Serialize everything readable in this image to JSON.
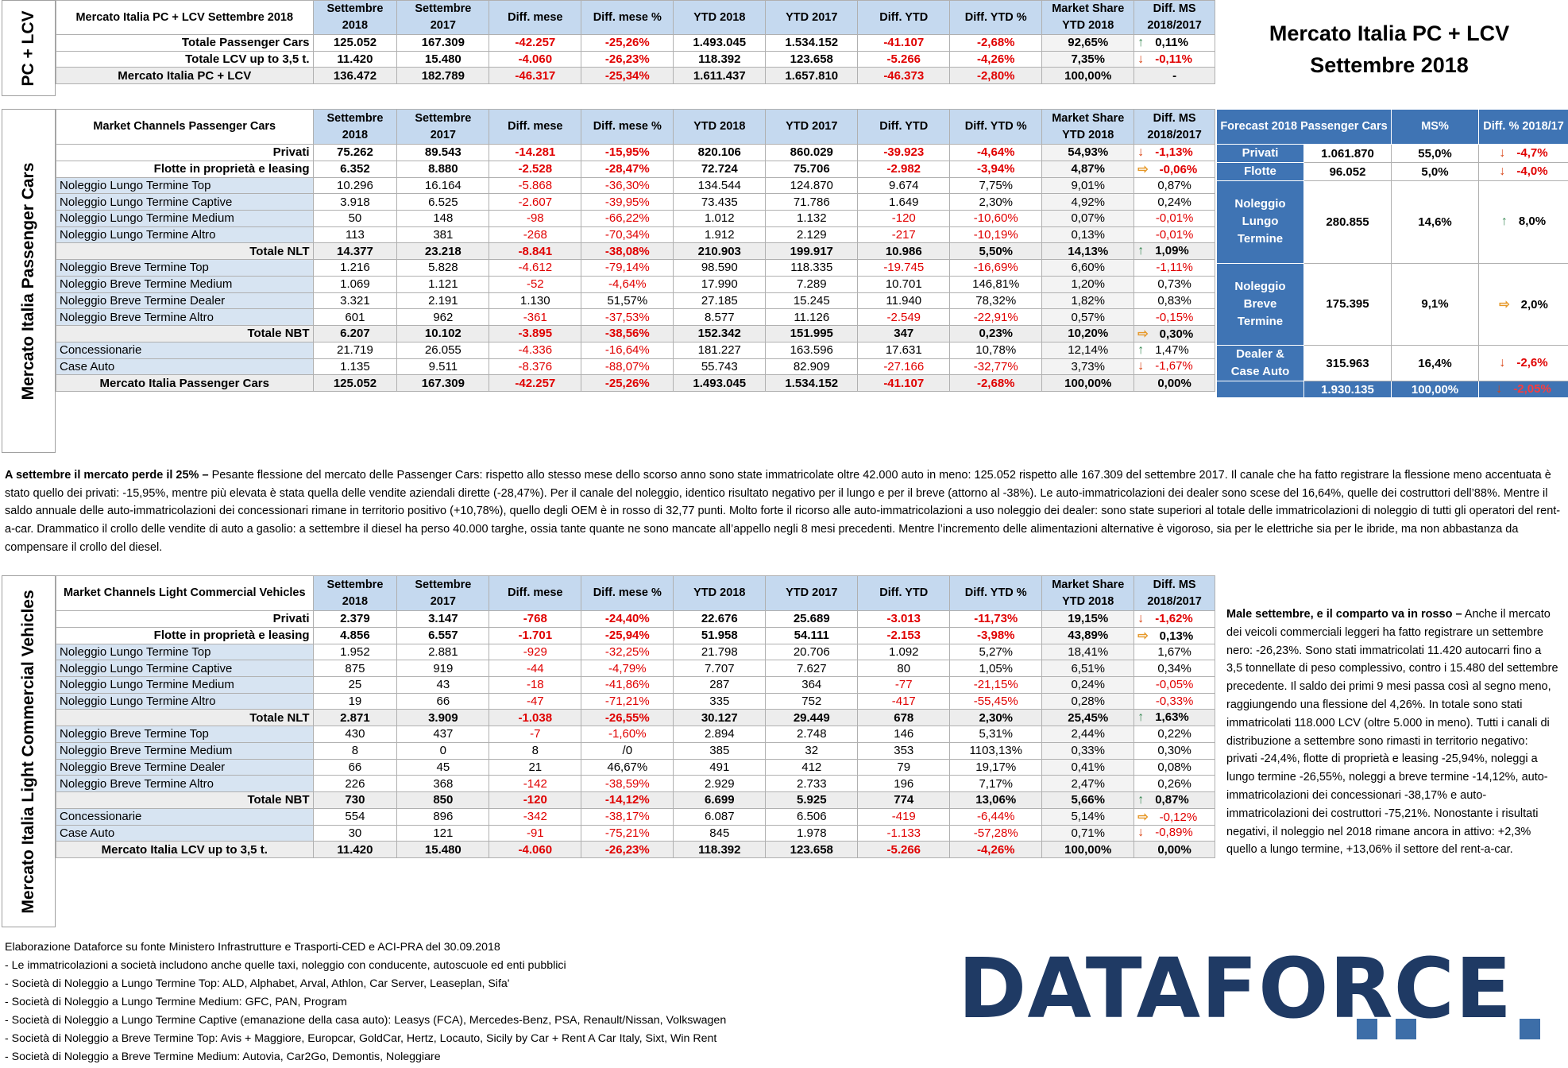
{
  "title": {
    "line1": "Mercato Italia PC + LCV",
    "line2": "Settembre 2018"
  },
  "columns": [
    "Settembre 2018",
    "Settembre 2017",
    "Diff. mese",
    "Diff. mese %",
    "YTD 2018",
    "YTD 2017",
    "Diff. YTD",
    "Diff. YTD %",
    "Market Share YTD 2018",
    "Diff. MS 2018/2017"
  ],
  "summary": {
    "side_label": "PC + LCV",
    "header_label": "Mercato Italia PC + LCV Settembre 2018",
    "rows": [
      {
        "label": "Totale Passenger Cars",
        "cells": [
          "125.052",
          "167.309",
          "-42.257",
          "-25,26%",
          "1.493.045",
          "1.534.152",
          "-41.107",
          "-2,68%",
          "92,65%"
        ],
        "arrow": "up",
        "diff": "0,11%"
      },
      {
        "label": "Totale LCV up to 3,5 t.",
        "cells": [
          "11.420",
          "15.480",
          "-4.060",
          "-26,23%",
          "118.392",
          "123.658",
          "-5.266",
          "-4,26%",
          "7,35%"
        ],
        "arrow": "down",
        "diff": "-0,11%"
      },
      {
        "label": "Mercato Italia PC + LCV",
        "cells": [
          "136.472",
          "182.789",
          "-46.317",
          "-25,34%",
          "1.611.437",
          "1.657.810",
          "-46.373",
          "-2,80%",
          "100,00%"
        ],
        "arrow": "",
        "diff": "-",
        "total": true
      }
    ]
  },
  "pc": {
    "side_label": "Mercato Italia Passenger Cars",
    "header_label": "Market Channels Passenger Cars",
    "rows": [
      {
        "label": "Privati",
        "type": "bold",
        "cells": [
          "75.262",
          "89.543",
          "-14.281",
          "-15,95%",
          "820.106",
          "860.029",
          "-39.923",
          "-4,64%",
          "54,93%"
        ],
        "arrow": "down",
        "diff": "-1,13%"
      },
      {
        "label": "Flotte in proprietà e leasing",
        "type": "bold",
        "cells": [
          "6.352",
          "8.880",
          "-2.528",
          "-28,47%",
          "72.724",
          "75.706",
          "-2.982",
          "-3,94%",
          "4,87%"
        ],
        "arrow": "eq",
        "diff": "-0,06%"
      },
      {
        "label": "Noleggio Lungo Termine Top",
        "type": "sub",
        "cells": [
          "10.296",
          "16.164",
          "-5.868",
          "-36,30%",
          "134.544",
          "124.870",
          "9.674",
          "7,75%",
          "9,01%"
        ],
        "arrow": "",
        "diff": "0,87%"
      },
      {
        "label": "Noleggio Lungo Termine Captive",
        "type": "sub",
        "cells": [
          "3.918",
          "6.525",
          "-2.607",
          "-39,95%",
          "73.435",
          "71.786",
          "1.649",
          "2,30%",
          "4,92%"
        ],
        "arrow": "",
        "diff": "0,24%"
      },
      {
        "label": "Noleggio Lungo Termine Medium",
        "type": "sub",
        "cells": [
          "50",
          "148",
          "-98",
          "-66,22%",
          "1.012",
          "1.132",
          "-120",
          "-10,60%",
          "0,07%"
        ],
        "arrow": "",
        "diff": "-0,01%"
      },
      {
        "label": "Noleggio Lungo Termine Altro",
        "type": "sub",
        "cells": [
          "113",
          "381",
          "-268",
          "-70,34%",
          "1.912",
          "2.129",
          "-217",
          "-10,19%",
          "0,13%"
        ],
        "arrow": "",
        "diff": "-0,01%"
      },
      {
        "label": "Totale NLT",
        "type": "total",
        "cells": [
          "14.377",
          "23.218",
          "-8.841",
          "-38,08%",
          "210.903",
          "199.917",
          "10.986",
          "5,50%",
          "14,13%"
        ],
        "arrow": "up",
        "diff": "1,09%"
      },
      {
        "label": "Noleggio Breve Termine Top",
        "type": "sub",
        "cells": [
          "1.216",
          "5.828",
          "-4.612",
          "-79,14%",
          "98.590",
          "118.335",
          "-19.745",
          "-16,69%",
          "6,60%"
        ],
        "arrow": "",
        "diff": "-1,11%"
      },
      {
        "label": "Noleggio Breve Termine Medium",
        "type": "sub",
        "cells": [
          "1.069",
          "1.121",
          "-52",
          "-4,64%",
          "17.990",
          "7.289",
          "10.701",
          "146,81%",
          "1,20%"
        ],
        "arrow": "",
        "diff": "0,73%"
      },
      {
        "label": "Noleggio Breve Termine Dealer",
        "type": "sub",
        "cells": [
          "3.321",
          "2.191",
          "1.130",
          "51,57%",
          "27.185",
          "15.245",
          "11.940",
          "78,32%",
          "1,82%"
        ],
        "arrow": "",
        "diff": "0,83%"
      },
      {
        "label": "Noleggio Breve Termine Altro",
        "type": "sub",
        "cells": [
          "601",
          "962",
          "-361",
          "-37,53%",
          "8.577",
          "11.126",
          "-2.549",
          "-22,91%",
          "0,57%"
        ],
        "arrow": "",
        "diff": "-0,15%"
      },
      {
        "label": "Totale NBT",
        "type": "total",
        "cells": [
          "6.207",
          "10.102",
          "-3.895",
          "-38,56%",
          "152.342",
          "151.995",
          "347",
          "0,23%",
          "10,20%"
        ],
        "arrow": "eq",
        "diff": "0,30%"
      },
      {
        "label": "Concessionarie",
        "type": "sub",
        "cells": [
          "21.719",
          "26.055",
          "-4.336",
          "-16,64%",
          "181.227",
          "163.596",
          "17.631",
          "10,78%",
          "12,14%"
        ],
        "arrow": "up",
        "diff": "1,47%"
      },
      {
        "label": "Case Auto",
        "type": "sub",
        "cells": [
          "1.135",
          "9.511",
          "-8.376",
          "-88,07%",
          "55.743",
          "82.909",
          "-27.166",
          "-32,77%",
          "3,73%"
        ],
        "arrow": "down",
        "diff": "-1,67%"
      },
      {
        "label": "Mercato Italia Passenger Cars",
        "type": "grand",
        "cells": [
          "125.052",
          "167.309",
          "-42.257",
          "-25,26%",
          "1.493.045",
          "1.534.152",
          "-41.107",
          "-2,68%",
          "100,00%"
        ],
        "arrow": "",
        "diff": "0,00%"
      }
    ]
  },
  "forecast": {
    "header": {
      "label": "Forecast 2018 Passenger Cars",
      "ms": "MS%",
      "diff": "Diff. % 2018/17"
    },
    "rows": [
      {
        "label": "Privati",
        "value": "1.061.870",
        "ms": "55,0%",
        "arrow": "down",
        "diff": "-4,7%",
        "span": 1
      },
      {
        "label": "Flotte",
        "value": "96.052",
        "ms": "5,0%",
        "arrow": "down",
        "diff": "-4,0%",
        "span": 1
      },
      {
        "label": "Noleggio Lungo Termine",
        "value": "280.855",
        "ms": "14,6%",
        "arrow": "up",
        "diff": "8,0%",
        "span": 5
      },
      {
        "label": "Noleggio Breve Termine",
        "value": "175.395",
        "ms": "9,1%",
        "arrow": "eq",
        "diff": "2,0%",
        "span": 5
      },
      {
        "label": "Dealer & Case Auto",
        "value": "315.963",
        "ms": "16,4%",
        "arrow": "down",
        "diff": "-2,6%",
        "span": 2
      }
    ],
    "total": {
      "value": "1.930.135",
      "ms": "100,00%",
      "arrow": "down",
      "diff": "-2,05%"
    }
  },
  "pc_text": {
    "lead": "A settembre il mercato perde il 25% –",
    "body": " Pesante flessione del mercato delle Passenger Cars: rispetto allo stesso mese dello scorso anno sono state immatricolate oltre 42.000 auto in meno: 125.052 rispetto alle 167.309 del settembre 2017. Il canale che ha fatto registrare la flessione meno accentuata è stato quello dei privati: -15,95%, mentre più elevata è stata quella delle vendite aziendali dirette (-28,47%). Per il canale del noleggio, identico risultato negativo per il lungo e per il breve (attorno al -38%). Le auto-immatricolazioni dei dealer sono scese del 16,64%, quelle dei costruttori dell’88%. Mentre il saldo annuale delle auto-immatricolazioni dei concessionari rimane in territorio positivo (+10,78%), quello degli OEM è in rosso di 32,77 punti. Molto forte il ricorso alle auto-immatricolazioni a uso noleggio dei dealer: sono state superiori al totale delle immatricolazioni di noleggio di tutti gli operatori del rent-a-car. Drammatico il crollo delle vendite di auto a gasolio: a settembre il diesel ha perso 40.000 targhe, ossia tante quante ne sono mancate all’appello negli 8 mesi precedenti. Mentre l’incremento delle alimentazioni alternative è vigoroso, sia per le elettriche sia per le ibride, ma non abbastanza da compensare il crollo del diesel."
  },
  "lcv": {
    "side_label": "Mercato Italia Light Commercial Vehicles",
    "header_label": "Market Channels Light Commercial Vehicles",
    "rows": [
      {
        "label": "Privati",
        "type": "bold",
        "cells": [
          "2.379",
          "3.147",
          "-768",
          "-24,40%",
          "22.676",
          "25.689",
          "-3.013",
          "-11,73%",
          "19,15%"
        ],
        "arrow": "down",
        "diff": "-1,62%"
      },
      {
        "label": "Flotte in proprietà e leasing",
        "type": "bold",
        "cells": [
          "4.856",
          "6.557",
          "-1.701",
          "-25,94%",
          "51.958",
          "54.111",
          "-2.153",
          "-3,98%",
          "43,89%"
        ],
        "arrow": "eq",
        "diff": "0,13%"
      },
      {
        "label": "Noleggio Lungo Termine Top",
        "type": "sub",
        "cells": [
          "1.952",
          "2.881",
          "-929",
          "-32,25%",
          "21.798",
          "20.706",
          "1.092",
          "5,27%",
          "18,41%"
        ],
        "arrow": "",
        "diff": "1,67%"
      },
      {
        "label": "Noleggio Lungo Termine Captive",
        "type": "sub",
        "cells": [
          "875",
          "919",
          "-44",
          "-4,79%",
          "7.707",
          "7.627",
          "80",
          "1,05%",
          "6,51%"
        ],
        "arrow": "",
        "diff": "0,34%"
      },
      {
        "label": "Noleggio Lungo Termine Medium",
        "type": "sub",
        "cells": [
          "25",
          "43",
          "-18",
          "-41,86%",
          "287",
          "364",
          "-77",
          "-21,15%",
          "0,24%"
        ],
        "arrow": "",
        "diff": "-0,05%"
      },
      {
        "label": "Noleggio Lungo Termine Altro",
        "type": "sub",
        "cells": [
          "19",
          "66",
          "-47",
          "-71,21%",
          "335",
          "752",
          "-417",
          "-55,45%",
          "0,28%"
        ],
        "arrow": "",
        "diff": "-0,33%"
      },
      {
        "label": "Totale NLT",
        "type": "total",
        "cells": [
          "2.871",
          "3.909",
          "-1.038",
          "-26,55%",
          "30.127",
          "29.449",
          "678",
          "2,30%",
          "25,45%"
        ],
        "arrow": "up",
        "diff": "1,63%"
      },
      {
        "label": "Noleggio Breve Termine Top",
        "type": "sub",
        "cells": [
          "430",
          "437",
          "-7",
          "-1,60%",
          "2.894",
          "2.748",
          "146",
          "5,31%",
          "2,44%"
        ],
        "arrow": "",
        "diff": "0,22%"
      },
      {
        "label": "Noleggio Breve Termine Medium",
        "type": "sub",
        "cells": [
          "8",
          "0",
          "8",
          "/0",
          "385",
          "32",
          "353",
          "1103,13%",
          "0,33%"
        ],
        "arrow": "",
        "diff": "0,30%"
      },
      {
        "label": "Noleggio Breve Termine Dealer",
        "type": "sub",
        "cells": [
          "66",
          "45",
          "21",
          "46,67%",
          "491",
          "412",
          "79",
          "19,17%",
          "0,41%"
        ],
        "arrow": "",
        "diff": "0,08%"
      },
      {
        "label": "Noleggio Breve Termine Altro",
        "type": "sub",
        "cells": [
          "226",
          "368",
          "-142",
          "-38,59%",
          "2.929",
          "2.733",
          "196",
          "7,17%",
          "2,47%"
        ],
        "arrow": "",
        "diff": "0,26%"
      },
      {
        "label": "Totale NBT",
        "type": "total",
        "cells": [
          "730",
          "850",
          "-120",
          "-14,12%",
          "6.699",
          "5.925",
          "774",
          "13,06%",
          "5,66%"
        ],
        "arrow": "up",
        "diff": "0,87%"
      },
      {
        "label": "Concessionarie",
        "type": "sub",
        "cells": [
          "554",
          "896",
          "-342",
          "-38,17%",
          "6.087",
          "6.506",
          "-419",
          "-6,44%",
          "5,14%"
        ],
        "arrow": "eq",
        "diff": "-0,12%"
      },
      {
        "label": "Case Auto",
        "type": "sub",
        "cells": [
          "30",
          "121",
          "-91",
          "-75,21%",
          "845",
          "1.978",
          "-1.133",
          "-57,28%",
          "0,71%"
        ],
        "arrow": "down",
        "diff": "-0,89%"
      },
      {
        "label": "Mercato Italia LCV up to 3,5 t.",
        "type": "grand",
        "cells": [
          "11.420",
          "15.480",
          "-4.060",
          "-26,23%",
          "118.392",
          "123.658",
          "-5.266",
          "-4,26%",
          "100,00%"
        ],
        "arrow": "",
        "diff": "0,00%"
      }
    ]
  },
  "lcv_text": {
    "lead": "Male settembre, e il comparto va in rosso –",
    "body": " Anche il mercato dei veicoli commerciali leggeri ha fatto registrare un settembre nero: -26,23%. Sono stati immatricolati 11.420 autocarri fino a 3,5 tonnellate di peso complessivo, contro i 15.480 del settembre precedente. Il saldo dei primi 9 mesi passa così al segno meno, raggiungendo una flessione del 4,26%. In totale sono stati immatricolati 118.000 LCV (oltre 5.000 in meno). Tutti i canali di distribuzione a settembre sono rimasti in territorio negativo: privati -24,4%, flotte di proprietà e leasing -25,94%, noleggi a lungo termine -26,55%, noleggi a breve termine -14,12%, auto-immatricolazioni dei concessionari -38,17% e auto-immatricolazioni dei costruttori -75,21%. Nonostante i risultati negativi, il noleggio nel 2018 rimane ancora in attivo: +2,3% quello a lungo termine, +13,06% il settore del rent-a-car."
  },
  "footer": [
    "Elaborazione Dataforce su fonte Ministero Infrastrutture e Trasporti-CED e ACI-PRA del 30.09.2018",
    "- Le immatricolazioni a società includono anche quelle taxi, noleggio con conducente, autoscuole ed enti pubblici",
    "- Società di Noleggio a Lungo Termine Top: ALD, Alphabet, Arval, Athlon, Car Server, Leaseplan, Sifa'",
    "- Società di Noleggio a Lungo Termine Medium: GFC, PAN, Program",
    "- Società di Noleggio a Lungo Termine Captive (emanazione della casa auto): Leasys (FCA), Mercedes-Benz, PSA, Renault/Nissan, Volkswagen",
    "- Società di Noleggio a Breve Termine Top: Avis + Maggiore, Europcar, GoldCar, Hertz, Locauto, Sicily by Car + Rent A Car Italy, Sixt, Win Rent",
    "- Società di Noleggio a Breve Termine Medium: Autovia, Car2Go, Demontis, Noleggiare"
  ],
  "logo": {
    "text": "DATAFORCE"
  }
}
